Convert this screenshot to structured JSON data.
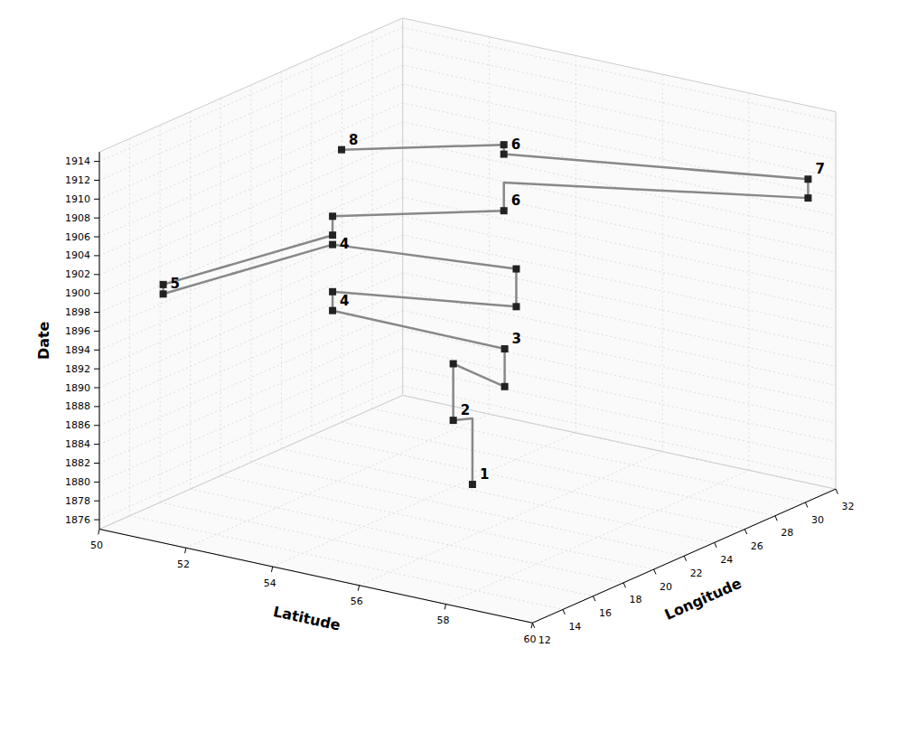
{
  "chart_data": {
    "type": "line3d",
    "xlabel": "Latitude",
    "ylabel": "Longitude",
    "zlabel": "Date",
    "xlim": [
      50,
      60
    ],
    "ylim": [
      12,
      32
    ],
    "zlim": [
      1875,
      1915
    ],
    "xticks": [
      50,
      52,
      54,
      56,
      58,
      60
    ],
    "yticks": [
      12,
      14,
      16,
      18,
      20,
      22,
      24,
      26,
      28,
      30,
      32
    ],
    "zticks": [
      1876,
      1878,
      1880,
      1882,
      1884,
      1886,
      1888,
      1890,
      1892,
      1894,
      1896,
      1898,
      1900,
      1902,
      1904,
      1906,
      1908,
      1910,
      1912,
      1914
    ],
    "grid": true,
    "series": [
      {
        "type": "line",
        "color": "#888888",
        "x": [
          54.21,
          54.21,
          53.98,
          53.98,
          55.91,
          55.91,
          52.23,
          52.23,
          55.6,
          55.6,
          52.23,
          51.34,
          51.34,
          52.23,
          52.23,
          54.69,
          54.69,
          54.69,
          59.95,
          59.95,
          54.69,
          54.69,
          52.35
        ],
        "y": [
          24.58,
          24.58,
          23.97,
          23.97,
          21.85,
          21.85,
          21.01,
          21.01,
          23.5,
          23.5,
          21.01,
          12.38,
          12.38,
          21.01,
          21.01,
          25.28,
          25.28,
          25.28,
          30.32,
          30.32,
          25.28,
          25.28,
          21.26
        ],
        "z": [
          1875,
          1882,
          1882,
          1888,
          1889,
          1893,
          1894,
          1896,
          1896,
          1900,
          1901,
          1901,
          1902,
          1902,
          1904,
          1904,
          1906,
          1907,
          1907,
          1909,
          1910,
          1911,
          1911
        ]
      },
      {
        "type": "scatter",
        "color": "#222222",
        "marker": "square",
        "x": [
          54.21,
          53.98,
          53.98,
          55.91,
          55.91,
          52.23,
          52.23,
          55.6,
          55.6,
          52.23,
          51.34,
          51.34,
          52.23,
          52.23,
          54.69,
          59.95,
          59.95,
          54.69,
          54.69,
          52.35
        ],
        "y": [
          24.58,
          23.97,
          23.97,
          21.85,
          21.85,
          21.01,
          21.01,
          23.5,
          23.5,
          21.01,
          12.38,
          12.38,
          21.01,
          21.01,
          25.28,
          30.32,
          30.32,
          25.28,
          25.28,
          21.26
        ],
        "z": [
          1875,
          1882,
          1888,
          1889,
          1893,
          1894,
          1896,
          1896,
          1900,
          1901,
          1901,
          1902,
          1902,
          1904,
          1904,
          1907,
          1909,
          1910,
          1911,
          1911
        ]
      }
    ],
    "annotations": [
      {
        "text": "1",
        "x": 54.21,
        "y": 24.58,
        "z": 1875
      },
      {
        "text": "2",
        "x": 53.98,
        "y": 23.97,
        "z": 1882
      },
      {
        "text": "3",
        "x": 55.91,
        "y": 21.85,
        "z": 1893
      },
      {
        "text": "4",
        "x": 52.23,
        "y": 21.01,
        "z": 1894
      },
      {
        "text": "4",
        "x": 52.23,
        "y": 21.01,
        "z": 1900
      },
      {
        "text": "5",
        "x": 51.34,
        "y": 12.38,
        "z": 1901
      },
      {
        "text": "6",
        "x": 54.69,
        "y": 25.28,
        "z": 1904
      },
      {
        "text": "6",
        "x": 54.69,
        "y": 25.28,
        "z": 1910
      },
      {
        "text": "7",
        "x": 59.95,
        "y": 30.32,
        "z": 1909
      },
      {
        "text": "8",
        "x": 52.35,
        "y": 21.26,
        "z": 1911
      }
    ]
  }
}
